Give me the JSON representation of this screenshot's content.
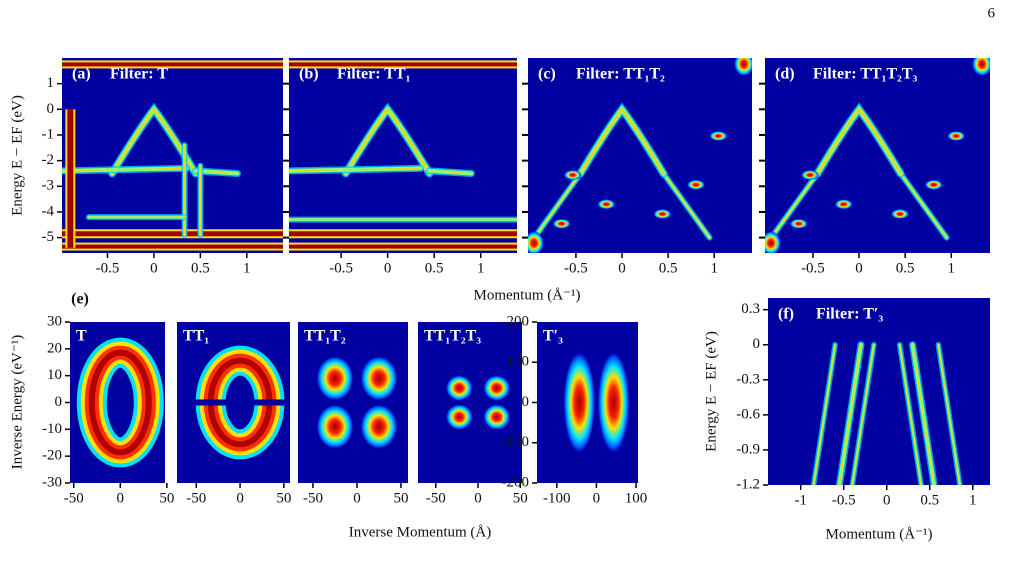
{
  "page_number": "6",
  "momentum_label": "Momentum (Å⁻¹)",
  "panel_e_label": "(e)",
  "e_x_label": "Inverse Momentum (Å)",
  "e_y_label": "Inverse Energy (eV⁻¹)",
  "chart_data": [
    {
      "type": "heatmap",
      "panel_label": "(a)",
      "title": "Filter: T",
      "y_label": "Energy E − EF (eV)",
      "xlim": [
        -0.99,
        1.39
      ],
      "ylim": [
        -5.6,
        2.0
      ],
      "xticks": [
        -0.5,
        0,
        0.5,
        1
      ],
      "yticks": [
        1,
        0,
        -1,
        -2,
        -3,
        -4,
        -5
      ]
    },
    {
      "type": "heatmap",
      "panel_label": "(b)",
      "title": "Filter: TT₁",
      "xlim": [
        -1.06,
        1.39
      ],
      "ylim": [
        -5.6,
        2.0
      ],
      "xticks": [
        -0.5,
        0,
        0.5,
        1
      ]
    },
    {
      "type": "heatmap",
      "panel_label": "(c)",
      "title": "Filter: TT₁T₂",
      "xlim": [
        -1.02,
        1.41
      ],
      "ylim": [
        -5.6,
        2.0
      ],
      "xticks": [
        -0.5,
        0,
        0.5,
        1
      ]
    },
    {
      "type": "heatmap",
      "panel_label": "(d)",
      "title": "Filter: TT₁T₂T₃",
      "xlim": [
        -1.02,
        1.42
      ],
      "ylim": [
        -5.6,
        2.0
      ],
      "xticks": [
        -0.5,
        0,
        0.5,
        1
      ]
    },
    {
      "type": "heatmap",
      "title": "T",
      "xlim": [
        -54,
        48
      ],
      "ylim": [
        -30,
        30
      ],
      "xticks": [
        -50,
        0,
        50
      ],
      "yticks": [
        30,
        20,
        10,
        0,
        -10,
        -20,
        -30
      ]
    },
    {
      "type": "heatmap",
      "title": "TT₁",
      "xlim": [
        -72,
        57
      ],
      "ylim": [
        -30,
        30
      ],
      "xticks": [
        -50,
        0,
        50
      ]
    },
    {
      "type": "heatmap",
      "title": "TT₁T₂",
      "xlim": [
        -67,
        58
      ],
      "ylim": [
        -30,
        30
      ],
      "xticks": [
        -50,
        0,
        50
      ]
    },
    {
      "type": "heatmap",
      "title": "TT₁T₂T₃",
      "xlim": [
        -71,
        52
      ],
      "ylim": [
        -30,
        30
      ],
      "xticks": [
        -50,
        0,
        50
      ]
    },
    {
      "type": "heatmap",
      "title": "T′₃",
      "xlim": [
        -150,
        105
      ],
      "ylim": [
        -200,
        200
      ],
      "xticks": [
        -100,
        0,
        100
      ],
      "yticks": [
        200,
        100,
        0,
        -100,
        -200
      ]
    },
    {
      "type": "heatmap",
      "panel_label": "(f)",
      "title": "Filter: T′₃",
      "y_label": "Energy E − EF (eV)",
      "x_label": "Momentum (Å⁻¹)",
      "xlim": [
        -1.38,
        1.2
      ],
      "ylim": [
        -1.2,
        0.4
      ],
      "xticks": [
        -1,
        -0.5,
        0,
        0.5,
        1
      ],
      "yticks": [
        0.3,
        0,
        -0.3,
        -0.6,
        -0.9,
        -1.2
      ]
    }
  ]
}
